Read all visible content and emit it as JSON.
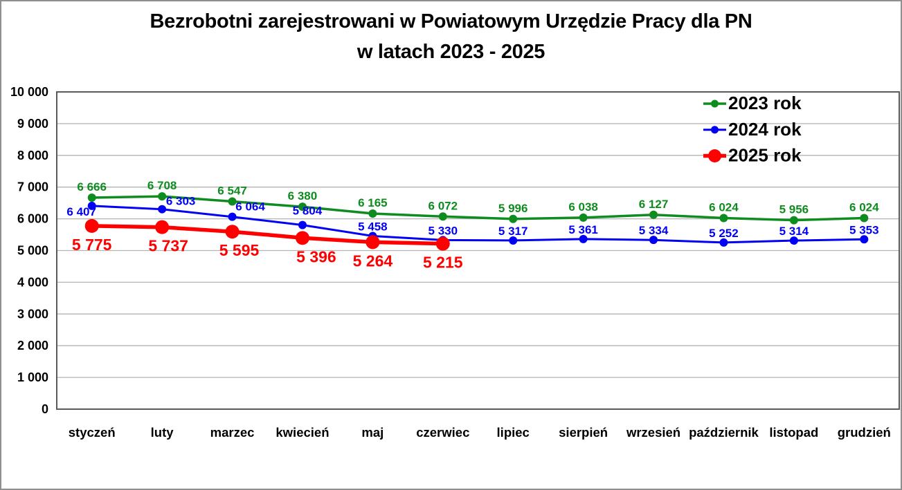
{
  "title": {
    "line1": "Bezrobotni zarejestrowani w Powiatowym Urzędzie Pracy dla PN",
    "line2": "w latach 2023 - 2025"
  },
  "chart_data": {
    "type": "line",
    "title": "Bezrobotni zarejestrowani w Powiatowym Urzędzie Pracy dla PN w latach 2023 - 2025",
    "categories": [
      "styczeń",
      "luty",
      "marzec",
      "kwiecień",
      "maj",
      "czerwiec",
      "lipiec",
      "sierpień",
      "wrzesień",
      "październik",
      "listopad",
      "grudzień"
    ],
    "series": [
      {
        "name": "2023 rok",
        "color": "#0f8c1f",
        "values": [
          6666,
          6708,
          6547,
          6380,
          6165,
          6072,
          5996,
          6038,
          6127,
          6024,
          5956,
          6024
        ]
      },
      {
        "name": "2024 rok",
        "color": "#0000f5",
        "values": [
          6407,
          6303,
          6064,
          5804,
          5458,
          5330,
          5317,
          5361,
          5334,
          5252,
          5314,
          5353
        ]
      },
      {
        "name": "2025 rok",
        "color": "#fe0000",
        "values": [
          5775,
          5737,
          5595,
          5396,
          5264,
          5215
        ]
      }
    ],
    "ylim": [
      0,
      10000
    ],
    "ytick_step": 1000,
    "ytick_labels": [
      "0",
      "1 000",
      "2 000",
      "3 000",
      "4 000",
      "5 000",
      "6 000",
      "7 000",
      "8 000",
      "9 000",
      "10 000"
    ],
    "grid": true,
    "grid_color": "#b3b3b3",
    "frame_color": "#595959",
    "legend_position": "upper right",
    "data_labels": true,
    "xlabel": "",
    "ylabel": ""
  }
}
